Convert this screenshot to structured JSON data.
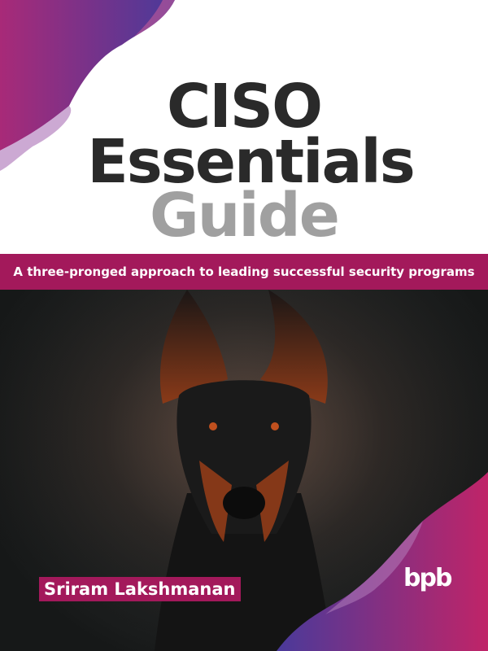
{
  "cover": {
    "title_line1": "CISO",
    "title_line2": "Essentials",
    "title_line3": "Guide",
    "subtitle": "A three-pronged approach to leading successful security programs",
    "author": "Sriram Lakshmanan",
    "publisher_logo": "bpb",
    "colors": {
      "band": "#a3195b",
      "title_dark": "#2a2a2a",
      "title_gray": "#a0a0a0",
      "wave_purple": "#5a3a9a",
      "wave_magenta": "#b8206a"
    }
  }
}
